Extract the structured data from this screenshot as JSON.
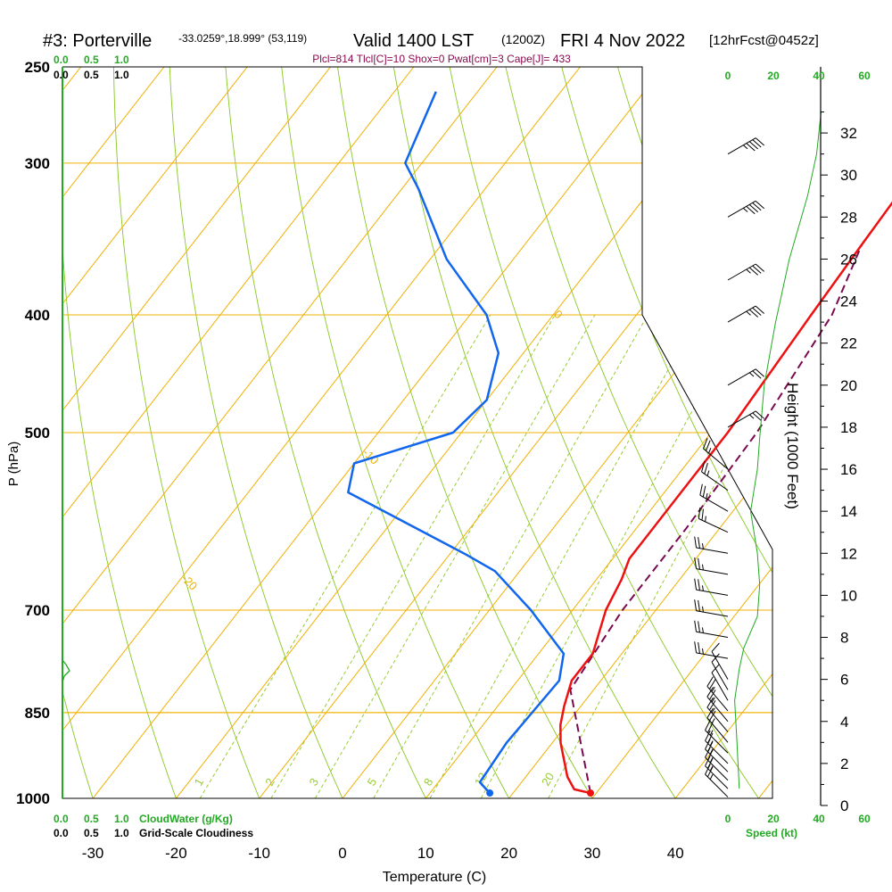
{
  "header": {
    "station": "#3: Porterville",
    "coords": "-33.0259°,18.999° (53,119)",
    "valid": "Valid 1400 LST",
    "zulu": "(1200Z)",
    "date": "FRI 4 Nov 2022",
    "forecast": "[12hrFcst@0452z]",
    "indices": "Plcl=814 Tlcl[C]=10 Shox=0 Pwat[cm]=3 Cape[J]= 433"
  },
  "labels": {
    "cloudwater_scale_top": [
      "0.0",
      "0.5",
      "1.0"
    ],
    "cloudiness_scale_top": [
      "0.0",
      "0.5",
      "1.0"
    ],
    "cloudwater_scale_bottom": [
      "0.0",
      "0.5",
      "1.0"
    ],
    "cloudwater_title": "CloudWater (g/Kg)",
    "cloudiness_scale_bottom": [
      "0.0",
      "0.5",
      "1.0"
    ],
    "cloudiness_title": "Grid-Scale Cloudiness",
    "speed_ticks": [
      "0",
      "20",
      "40",
      "60"
    ],
    "speed_title": "Speed (kt)",
    "height_title": "Height (1000 Feet)"
  },
  "colors": {
    "temperature": "#ee1111",
    "dewpoint": "#1166ee",
    "parcel": "#7a0a50",
    "isobar": "#f0b000",
    "dry_adiabat": "#88c822",
    "mixing_ratio": "#99cc33",
    "cloudwater": "#22aa22",
    "wind_speed": "#22aa22"
  },
  "chart_data": {
    "type": "skew-t",
    "xlabel": "Temperature (C)",
    "ylabel": "P (hPa)",
    "x_ticks": [
      -30,
      -20,
      -10,
      0,
      10,
      20,
      30,
      40
    ],
    "pressure_ticks": [
      250,
      300,
      400,
      500,
      700,
      850,
      1000
    ],
    "height_ticks": [
      0,
      2,
      4,
      6,
      8,
      10,
      12,
      14,
      16,
      18,
      20,
      22,
      24,
      26,
      28,
      30,
      32
    ],
    "isotherm_labels": [
      {
        "label": "10",
        "t": -10,
        "p": 300
      },
      {
        "label": "0",
        "t": -20,
        "p": 400
      },
      {
        "label": "-10",
        "t": -30,
        "p": 520
      },
      {
        "label": "-20",
        "t": -40,
        "p": 660
      },
      {
        "label": "-30",
        "t": -50,
        "p": 830
      },
      {
        "label": "0",
        "t": 0,
        "p": 350
      },
      {
        "label": "10",
        "t": 10,
        "p": 430
      },
      {
        "label": "20",
        "t": 20,
        "p": 505
      },
      {
        "label": "30",
        "t": 30,
        "p": 585
      }
    ],
    "mixing_ratio_labels": [
      "1",
      "2",
      "3",
      "5",
      "8",
      "12",
      "20"
    ],
    "temperature": [
      {
        "p": 990,
        "t": 29.3
      },
      {
        "p": 983,
        "t": 27.0
      },
      {
        "p": 960,
        "t": 25.0
      },
      {
        "p": 900,
        "t": 21.0
      },
      {
        "p": 870,
        "t": 19.3
      },
      {
        "p": 840,
        "t": 18.0
      },
      {
        "p": 800,
        "t": 16.5
      },
      {
        "p": 760,
        "t": 16.5
      },
      {
        "p": 700,
        "t": 14.0
      },
      {
        "p": 660,
        "t": 13.0
      },
      {
        "p": 635,
        "t": 12.0
      },
      {
        "p": 560,
        "t": 12.0
      },
      {
        "p": 500,
        "t": 12.0
      },
      {
        "p": 400,
        "t": 11.0
      },
      {
        "p": 350,
        "t": 10.5
      },
      {
        "p": 300,
        "t": 10.0
      },
      {
        "p": 262,
        "t": 9.5
      }
    ],
    "dewpoint": [
      {
        "p": 990,
        "t": 17.2
      },
      {
        "p": 970,
        "t": 15.0
      },
      {
        "p": 900,
        "t": 14.5
      },
      {
        "p": 800,
        "t": 15.0
      },
      {
        "p": 760,
        "t": 13.0
      },
      {
        "p": 700,
        "t": 5.0
      },
      {
        "p": 650,
        "t": -3.0
      },
      {
        "p": 630,
        "t": -8.0
      },
      {
        "p": 560,
        "t": -28.0
      },
      {
        "p": 530,
        "t": -30.0
      },
      {
        "p": 500,
        "t": -21.0
      },
      {
        "p": 470,
        "t": -20.0
      },
      {
        "p": 430,
        "t": -23.0
      },
      {
        "p": 400,
        "t": -28.0
      },
      {
        "p": 360,
        "t": -38.0
      },
      {
        "p": 315,
        "t": -48.0
      },
      {
        "p": 300,
        "t": -52.0
      },
      {
        "p": 262,
        "t": -55.0
      }
    ],
    "parcel": [
      {
        "p": 990,
        "t": 29.3
      },
      {
        "p": 814,
        "t": 17.2
      },
      {
        "p": 700,
        "t": 16.0
      },
      {
        "p": 600,
        "t": 16.0
      },
      {
        "p": 500,
        "t": 15.5
      },
      {
        "p": 400,
        "t": 13.5
      },
      {
        "p": 350,
        "t": 10.5
      }
    ],
    "surface_temperature": 29.3,
    "surface_dewpoint": 17.2,
    "wind_speed_profile": [
      {
        "h": 0.8,
        "s": 5
      },
      {
        "h": 3,
        "s": 4
      },
      {
        "h": 5,
        "s": 3
      },
      {
        "h": 6.5,
        "s": 5
      },
      {
        "h": 7.5,
        "s": 7
      },
      {
        "h": 9,
        "s": 13
      },
      {
        "h": 10.5,
        "s": 14
      },
      {
        "h": 12,
        "s": 13
      },
      {
        "h": 14,
        "s": 10
      },
      {
        "h": 16,
        "s": 13
      },
      {
        "h": 17.5,
        "s": 14
      },
      {
        "h": 20,
        "s": 16
      },
      {
        "h": 23,
        "s": 21
      },
      {
        "h": 26,
        "s": 27
      },
      {
        "h": 29,
        "s": 35
      },
      {
        "h": 31,
        "s": 39
      },
      {
        "h": 33,
        "s": 41
      }
    ],
    "wind_barbs": [
      {
        "h": 0.4,
        "s": 15,
        "dir": 45
      },
      {
        "h": 0.8,
        "s": 15,
        "dir": 45
      },
      {
        "h": 1.2,
        "s": 15,
        "dir": 45
      },
      {
        "h": 1.6,
        "s": 15,
        "dir": 45
      },
      {
        "h": 2.0,
        "s": 15,
        "dir": 45
      },
      {
        "h": 2.5,
        "s": 15,
        "dir": 45
      },
      {
        "h": 3.0,
        "s": 15,
        "dir": 40
      },
      {
        "h": 3.5,
        "s": 15,
        "dir": 40
      },
      {
        "h": 4.0,
        "s": 15,
        "dir": 40
      },
      {
        "h": 4.5,
        "s": 15,
        "dir": 40
      },
      {
        "h": 5.0,
        "s": 10,
        "dir": 30
      },
      {
        "h": 5.5,
        "s": 10,
        "dir": 30
      },
      {
        "h": 6.0,
        "s": 10,
        "dir": 30
      },
      {
        "h": 7.0,
        "s": 15,
        "dir": 80
      },
      {
        "h": 8.0,
        "s": 15,
        "dir": 80
      },
      {
        "h": 9.0,
        "s": 15,
        "dir": 80
      },
      {
        "h": 10.0,
        "s": 15,
        "dir": 80
      },
      {
        "h": 11.0,
        "s": 15,
        "dir": 80
      },
      {
        "h": 12.0,
        "s": 15,
        "dir": 80
      },
      {
        "h": 13.0,
        "s": 15,
        "dir": 65
      },
      {
        "h": 14.0,
        "s": 15,
        "dir": 60
      },
      {
        "h": 15.0,
        "s": 15,
        "dir": 55
      },
      {
        "h": 16.0,
        "s": 15,
        "dir": 50
      },
      {
        "h": 18.0,
        "s": 15,
        "dir": 300
      },
      {
        "h": 20.0,
        "s": 15,
        "dir": 300
      },
      {
        "h": 23.0,
        "s": 25,
        "dir": 300
      },
      {
        "h": 25.0,
        "s": 25,
        "dir": 300
      },
      {
        "h": 28.0,
        "s": 35,
        "dir": 300
      },
      {
        "h": 31.0,
        "s": 35,
        "dir": 300
      }
    ]
  }
}
